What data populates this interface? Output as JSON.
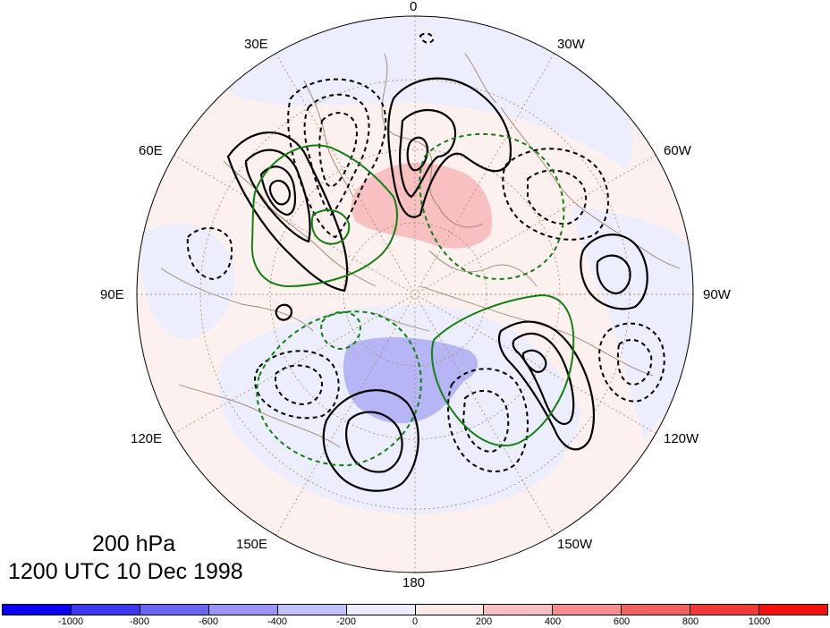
{
  "title": {
    "level": "200 hPa",
    "datetime": "1200 UTC 10 Dec 1998"
  },
  "longitude_labels": [
    "0",
    "30W",
    "60W",
    "90W",
    "120W",
    "150W",
    "180",
    "150E",
    "120E",
    "90E",
    "60E",
    "30E"
  ],
  "projection": "north-polar-stereographic",
  "colorbar": {
    "colors": [
      "#0a00f5",
      "#3d38f0",
      "#6a66f2",
      "#9994f5",
      "#c2c0fa",
      "#eceefd",
      "#fde9e8",
      "#f8c0c0",
      "#f58f8f",
      "#f26060",
      "#f03a3a",
      "#f5100f"
    ],
    "ticks": [
      "-1000",
      "-800",
      "-600",
      "-400",
      "-200",
      "0",
      "200",
      "400",
      "600",
      "800",
      "1000"
    ]
  },
  "contour_colors": {
    "positive": "#000000",
    "negative": "#000000",
    "green": "#108010",
    "coast": "#9c8468",
    "grid": "#b09070"
  }
}
